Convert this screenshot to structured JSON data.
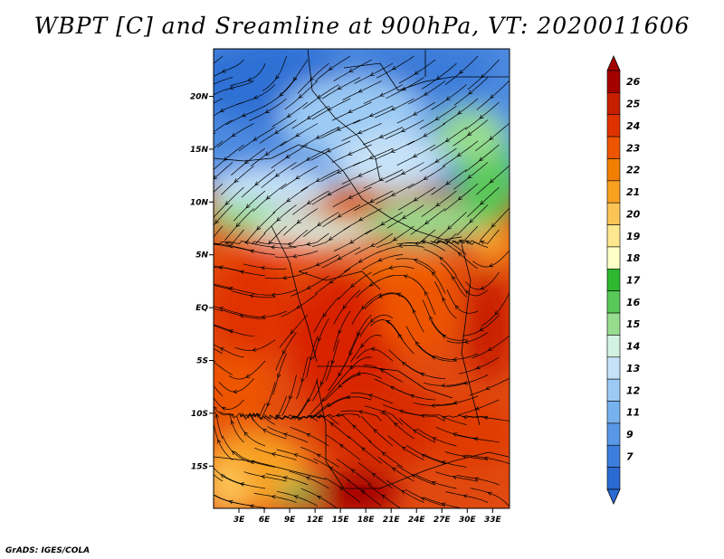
{
  "title": "WBPT [C] and Sreamline at 900hPa, VT: 2020011606",
  "credit": "GrADS: IGES/COLA",
  "map": {
    "lat_labels": [
      "20N",
      "15N",
      "10N",
      "5N",
      "EQ",
      "5S",
      "10S",
      "15S"
    ],
    "lat_values": [
      20,
      15,
      10,
      5,
      0,
      -5,
      -10,
      -15
    ],
    "lon_labels": [
      "3E",
      "6E",
      "9E",
      "12E",
      "15E",
      "18E",
      "21E",
      "24E",
      "27E",
      "30E",
      "33E"
    ],
    "lon_values": [
      3,
      6,
      9,
      12,
      15,
      18,
      21,
      24,
      27,
      30,
      33
    ],
    "lat_range": [
      -19,
      24.5
    ],
    "lon_range": [
      0,
      35
    ]
  },
  "colorbar": {
    "labels": [
      "26",
      "25",
      "24",
      "23",
      "22",
      "21",
      "20",
      "19",
      "18",
      "17",
      "16",
      "15",
      "14",
      "13",
      "12",
      "11",
      "9",
      "7"
    ],
    "colors": [
      "#a50000",
      "#c81e00",
      "#e03200",
      "#ee5500",
      "#f47e00",
      "#f8a020",
      "#fbc455",
      "#fde890",
      "#ffffc8",
      "#2eb830",
      "#58c858",
      "#98dc90",
      "#d4f2e4",
      "#c6e2f8",
      "#9ccaf4",
      "#78b2ee",
      "#5898e6",
      "#3c7edc",
      "#2a6ad2"
    ],
    "top_color": "#a50000",
    "bottom_color": "#2a6ad2"
  }
}
